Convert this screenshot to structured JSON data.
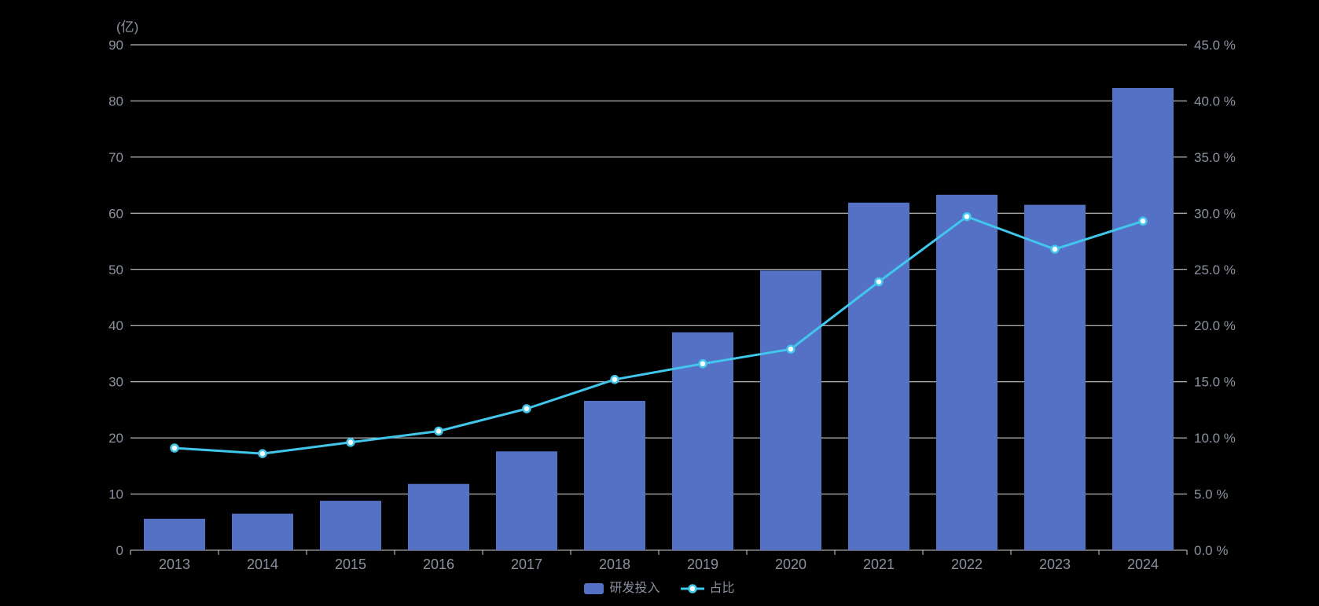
{
  "unit_label": "(亿)",
  "colors": {
    "bar": "#5571c6",
    "line": "#41c7eb",
    "marker_fill": "#ffffff",
    "axis_label": "#8c91a0",
    "grid_line": "#e1e3e6",
    "axis_line": "#c9ccd2",
    "background": "#000000"
  },
  "legend": {
    "items": [
      {
        "label": "研发投入",
        "type": "bar"
      },
      {
        "label": "占比",
        "type": "line"
      }
    ]
  },
  "chart_data": {
    "type": "bar",
    "subtype": "bar+line dual axis",
    "categories": [
      "2013",
      "2014",
      "2015",
      "2016",
      "2017",
      "2018",
      "2019",
      "2020",
      "2021",
      "2022",
      "2023",
      "2024"
    ],
    "series": [
      {
        "name": "研发投入",
        "type": "bar",
        "axis": "left",
        "unit": "亿",
        "values": [
          5.6,
          6.5,
          8.8,
          11.8,
          17.6,
          26.6,
          38.8,
          49.8,
          61.9,
          63.3,
          61.5,
          82.3
        ]
      },
      {
        "name": "占比",
        "type": "line",
        "axis": "right",
        "unit": "%",
        "values": [
          9.1,
          8.6,
          9.6,
          10.6,
          12.6,
          15.2,
          16.6,
          17.9,
          23.9,
          29.7,
          26.8,
          29.3
        ]
      }
    ],
    "left_axis": {
      "min": 0,
      "max": 90,
      "step": 10,
      "labels": [
        "0",
        "10",
        "20",
        "30",
        "40",
        "50",
        "60",
        "70",
        "80",
        "90"
      ]
    },
    "right_axis": {
      "min": 0,
      "max": 45,
      "step": 5,
      "labels": [
        "0.0 %",
        "5.0 %",
        "10.0 %",
        "15.0 %",
        "20.0 %",
        "25.0 %",
        "30.0 %",
        "35.0 %",
        "40.0 %",
        "45.0 %"
      ]
    },
    "grid": true,
    "legend_position": "bottom-center",
    "xlabel": "",
    "ylabel_left": "(亿)",
    "ylabel_right": ""
  }
}
